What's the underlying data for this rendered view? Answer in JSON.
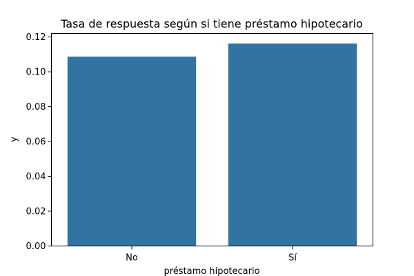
{
  "chart_data": {
    "type": "bar",
    "title": "Tasa de respuesta según si tiene préstamo hipotecario",
    "xlabel": "préstamo hipotecario",
    "ylabel": "y",
    "categories": [
      "No",
      "Sí"
    ],
    "values": [
      0.1087,
      0.1162
    ],
    "ylim": [
      0,
      0.122
    ],
    "yticks": [
      0.0,
      0.02,
      0.04,
      0.06,
      0.08,
      0.1,
      0.12
    ],
    "ytick_labels": [
      "0.00",
      "0.02",
      "0.04",
      "0.06",
      "0.08",
      "0.10",
      "0.12"
    ],
    "bar_color": "#3274a1",
    "grid": false
  }
}
